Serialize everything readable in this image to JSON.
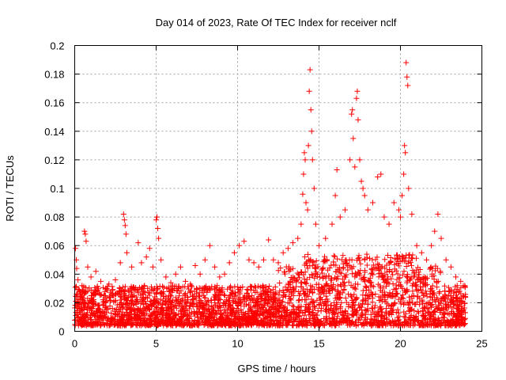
{
  "chart_data": {
    "type": "scatter",
    "title": "Day 014 of 2023, Rate Of TEC Index for receiver nclf",
    "xlabel": "GPS time / hours",
    "ylabel": "ROTI / TECUs",
    "xlim": [
      0,
      25
    ],
    "ylim": [
      0,
      0.2
    ],
    "xticks": [
      0,
      5,
      10,
      15,
      20,
      25
    ],
    "xtick_labels": [
      "0",
      "5",
      "10",
      "15",
      "20",
      "25"
    ],
    "yticks": [
      0,
      0.02,
      0.04,
      0.06,
      0.08,
      0.1,
      0.12,
      0.14,
      0.16,
      0.18,
      0.2
    ],
    "ytick_labels": [
      "0",
      "0.02",
      "0.04",
      "0.06",
      "0.08",
      "0.1",
      "0.12",
      "0.14",
      "0.16",
      "0.18",
      "0.2"
    ],
    "grid": true,
    "marker": "+",
    "color": "#ff0000",
    "series": [
      {
        "name": "ROTI",
        "points": [
          [
            0.05,
            0.058
          ],
          [
            0.1,
            0.05
          ],
          [
            0.12,
            0.044
          ],
          [
            0.2,
            0.036
          ],
          [
            0.3,
            0.028
          ],
          [
            0.45,
            0.032
          ],
          [
            0.6,
            0.07
          ],
          [
            0.65,
            0.068
          ],
          [
            0.7,
            0.063
          ],
          [
            0.8,
            0.045
          ],
          [
            1.0,
            0.038
          ],
          [
            1.3,
            0.042
          ],
          [
            1.6,
            0.035
          ],
          [
            1.9,
            0.03
          ],
          [
            2.1,
            0.033
          ],
          [
            2.5,
            0.036
          ],
          [
            2.8,
            0.048
          ],
          [
            3.0,
            0.082
          ],
          [
            3.05,
            0.078
          ],
          [
            3.1,
            0.074
          ],
          [
            3.15,
            0.068
          ],
          [
            3.2,
            0.055
          ],
          [
            3.5,
            0.045
          ],
          [
            3.9,
            0.062
          ],
          [
            4.1,
            0.048
          ],
          [
            4.4,
            0.052
          ],
          [
            4.6,
            0.058
          ],
          [
            4.8,
            0.045
          ],
          [
            5.0,
            0.078
          ],
          [
            5.05,
            0.08
          ],
          [
            5.1,
            0.072
          ],
          [
            5.15,
            0.065
          ],
          [
            5.3,
            0.05
          ],
          [
            5.6,
            0.038
          ],
          [
            5.9,
            0.034
          ],
          [
            6.2,
            0.04
          ],
          [
            6.5,
            0.045
          ],
          [
            6.8,
            0.035
          ],
          [
            7.1,
            0.033
          ],
          [
            7.4,
            0.046
          ],
          [
            7.7,
            0.04
          ],
          [
            8.0,
            0.05
          ],
          [
            8.3,
            0.06
          ],
          [
            8.6,
            0.045
          ],
          [
            8.9,
            0.038
          ],
          [
            9.2,
            0.04
          ],
          [
            9.5,
            0.048
          ],
          [
            9.8,
            0.055
          ],
          [
            10.1,
            0.06
          ],
          [
            10.4,
            0.063
          ],
          [
            10.7,
            0.05
          ],
          [
            11.0,
            0.048
          ],
          [
            11.3,
            0.045
          ],
          [
            11.6,
            0.05
          ],
          [
            11.9,
            0.064
          ],
          [
            12.2,
            0.05
          ],
          [
            12.5,
            0.048
          ],
          [
            12.8,
            0.055
          ],
          [
            13.1,
            0.058
          ],
          [
            13.4,
            0.062
          ],
          [
            13.7,
            0.065
          ],
          [
            13.9,
            0.075
          ],
          [
            14.0,
            0.096
          ],
          [
            14.05,
            0.11
          ],
          [
            14.1,
            0.125
          ],
          [
            14.15,
            0.12
          ],
          [
            14.2,
            0.09
          ],
          [
            14.3,
            0.085
          ],
          [
            14.35,
            0.13
          ],
          [
            14.4,
            0.168
          ],
          [
            14.45,
            0.183
          ],
          [
            14.5,
            0.155
          ],
          [
            14.55,
            0.14
          ],
          [
            14.6,
            0.12
          ],
          [
            14.7,
            0.1
          ],
          [
            14.8,
            0.075
          ],
          [
            15.0,
            0.06
          ],
          [
            15.4,
            0.065
          ],
          [
            15.8,
            0.075
          ],
          [
            16.0,
            0.095
          ],
          [
            16.1,
            0.113
          ],
          [
            16.3,
            0.08
          ],
          [
            16.6,
            0.085
          ],
          [
            16.9,
            0.12
          ],
          [
            17.0,
            0.152
          ],
          [
            17.05,
            0.155
          ],
          [
            17.1,
            0.135
          ],
          [
            17.2,
            0.115
          ],
          [
            17.3,
            0.163
          ],
          [
            17.35,
            0.168
          ],
          [
            17.4,
            0.148
          ],
          [
            17.5,
            0.12
          ],
          [
            17.6,
            0.105
          ],
          [
            17.7,
            0.1
          ],
          [
            17.8,
            0.095
          ],
          [
            18.0,
            0.085
          ],
          [
            18.3,
            0.09
          ],
          [
            18.6,
            0.108
          ],
          [
            18.8,
            0.11
          ],
          [
            19.0,
            0.08
          ],
          [
            19.3,
            0.075
          ],
          [
            19.6,
            0.09
          ],
          [
            19.9,
            0.085
          ],
          [
            20.0,
            0.08
          ],
          [
            20.1,
            0.095
          ],
          [
            20.2,
            0.11
          ],
          [
            20.25,
            0.13
          ],
          [
            20.3,
            0.125
          ],
          [
            20.35,
            0.188
          ],
          [
            20.4,
            0.178
          ],
          [
            20.45,
            0.172
          ],
          [
            20.5,
            0.1
          ],
          [
            20.7,
            0.082
          ],
          [
            21.0,
            0.06
          ],
          [
            21.3,
            0.055
          ],
          [
            21.6,
            0.05
          ],
          [
            21.9,
            0.06
          ],
          [
            22.1,
            0.07
          ],
          [
            22.3,
            0.082
          ],
          [
            22.5,
            0.065
          ],
          [
            22.8,
            0.05
          ],
          [
            23.1,
            0.045
          ],
          [
            23.4,
            0.038
          ],
          [
            23.7,
            0.035
          ],
          [
            23.95,
            0.032
          ]
        ]
      }
    ]
  }
}
